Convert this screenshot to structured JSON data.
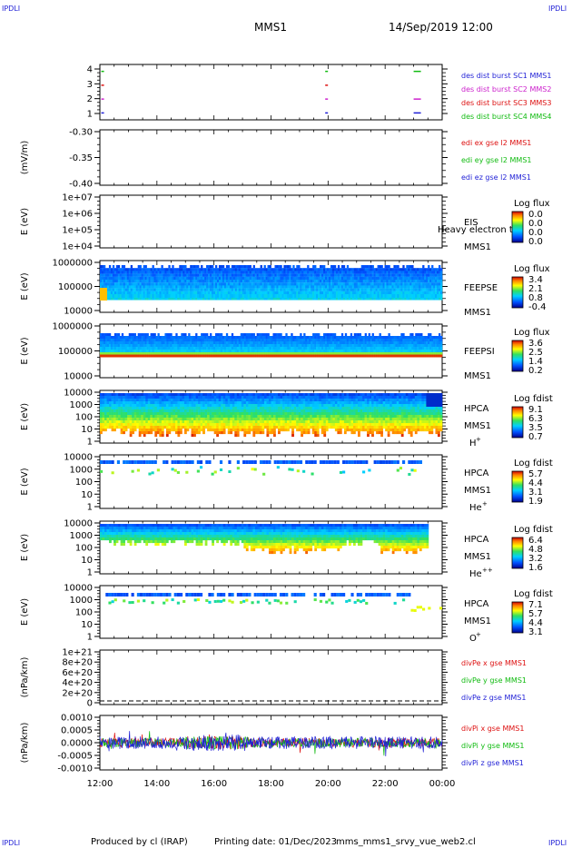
{
  "header": {
    "corner_left_top": "IPDLI",
    "corner_right_top": "IPDLI",
    "corner_left_bottom": "IPDLI",
    "corner_right_bottom": "IPDLI",
    "title": "MMS1",
    "datetime": "14/Sep/2019 12:00"
  },
  "footer": {
    "produced": "Produced by cl (IRAP)",
    "printing": "Printing date: 01/Dec/2023",
    "file": "mms_mms1_srvy_vue_web2.cl"
  },
  "colors": {
    "c_blue": "#1f1fd6",
    "c_magenta": "#cc22cc",
    "c_red": "#dd1111",
    "c_green": "#11bb11"
  },
  "chart_data": {
    "type": "heatmap",
    "x_axis": {
      "ticks": [
        "12:00",
        "14:00",
        "16:00",
        "18:00",
        "20:00",
        "22:00",
        "00:00"
      ],
      "range_hours": [
        12,
        24
      ]
    },
    "panels": [
      {
        "id": "burst",
        "type": "scatter",
        "ylabel": "",
        "yticks": [
          "4",
          "3",
          "2",
          "1"
        ],
        "ylim": [
          0.5,
          4.5
        ],
        "legend": [
          {
            "text": "des dist burst SC1 MMS1",
            "color": "#1f1fd6"
          },
          {
            "text": "des dist burst SC2 MMS2",
            "color": "#cc22cc"
          },
          {
            "text": "des dist burst SC3 MMS3",
            "color": "#dd1111"
          },
          {
            "text": "des dist burst SC4 MMS4",
            "color": "#11bb11"
          }
        ],
        "marks": [
          {
            "x": 12.05,
            "level": 4,
            "color": "#11bb11"
          },
          {
            "x": 12.05,
            "level": 3,
            "color": "#dd1111"
          },
          {
            "x": 12.05,
            "level": 2,
            "color": "#cc22cc"
          },
          {
            "x": 12.05,
            "level": 1,
            "color": "#1f1fd6"
          },
          {
            "x": 19.9,
            "level": 4,
            "color": "#11bb11"
          },
          {
            "x": 19.9,
            "level": 3,
            "color": "#dd1111"
          },
          {
            "x": 19.9,
            "level": 2,
            "color": "#cc22cc"
          },
          {
            "x": 19.9,
            "level": 1,
            "color": "#1f1fd6"
          },
          {
            "x": 23.0,
            "level": 4,
            "color": "#11bb11"
          },
          {
            "x": 23.0,
            "level": 2,
            "color": "#cc22cc"
          },
          {
            "x": 23.0,
            "level": 1,
            "color": "#1f1fd6"
          }
        ]
      },
      {
        "id": "edi",
        "type": "line",
        "ylabel": "(mV/m)",
        "yticks": [
          "-0.30",
          "-0.35",
          "-0.40"
        ],
        "ylim": [
          -0.42,
          -0.26
        ],
        "legend": [
          {
            "text": "edi ex gse l2 MMS1",
            "color": "#dd1111"
          },
          {
            "text": "edi ey gse l2 MMS1",
            "color": "#11bb11"
          },
          {
            "text": "edi ez gse l2 MMS1",
            "color": "#1f1fd6"
          }
        ]
      },
      {
        "id": "eis",
        "type": "heatmap",
        "ylabel": "E (eV)",
        "yticks": [
          "1e+07",
          "1e+06",
          "1e+05",
          "1e+04"
        ],
        "ylim": [
          10000,
          10000000
        ],
        "label": [
          "EIS",
          "MMS1"
        ],
        "overlay": "Heavy electron to",
        "cbar_title": "Log flux",
        "cbar_ticks": [
          "0.0",
          "0.0",
          "0.0",
          "0.0"
        ]
      },
      {
        "id": "feepse",
        "type": "heatmap",
        "ylabel": "E (eV)",
        "yticks": [
          "1000000",
          "100000",
          "10000"
        ],
        "ylim": [
          10000,
          1500000
        ],
        "label": [
          "FEEPSE",
          "MMS1"
        ],
        "cbar_title": "Log flux",
        "cbar_ticks": [
          "3.4",
          "2.1",
          "0.8",
          "-0.4"
        ]
      },
      {
        "id": "feepsi",
        "type": "heatmap",
        "ylabel": "E (eV)",
        "yticks": [
          "1000000",
          "100000",
          "10000"
        ],
        "ylim": [
          10000,
          1500000
        ],
        "label": [
          "FEEPSI",
          "MMS1"
        ],
        "cbar_title": "Log flux",
        "cbar_ticks": [
          "3.6",
          "2.5",
          "1.4",
          "0.2"
        ]
      },
      {
        "id": "hpca_h",
        "type": "heatmap",
        "ylabel": "E (eV)",
        "yticks": [
          "10000",
          "1000",
          "100",
          "10",
          "1"
        ],
        "ylim": [
          1,
          40000
        ],
        "label": [
          "HPCA",
          "MMS1"
        ],
        "species": "H",
        "species_sup": "+",
        "cbar_title": "Log fdist",
        "cbar_ticks": [
          "9.1",
          "6.3",
          "3.5",
          "0.7"
        ]
      },
      {
        "id": "hpca_he",
        "type": "heatmap",
        "ylabel": "E (eV)",
        "yticks": [
          "10000",
          "1000",
          "100",
          "10",
          "1"
        ],
        "ylim": [
          1,
          40000
        ],
        "label": [
          "HPCA",
          "MMS1"
        ],
        "species": "He",
        "species_sup": "+",
        "cbar_title": "Log fdist",
        "cbar_ticks": [
          "5.7",
          "4.4",
          "3.1",
          "1.9"
        ]
      },
      {
        "id": "hpca_hepp",
        "type": "heatmap",
        "ylabel": "E (eV)",
        "yticks": [
          "10000",
          "1000",
          "100",
          "10",
          "1"
        ],
        "ylim": [
          1,
          40000
        ],
        "label": [
          "HPCA",
          "MMS1"
        ],
        "species": "He",
        "species_sup": "++",
        "cbar_title": "Log fdist",
        "cbar_ticks": [
          "6.4",
          "4.8",
          "3.2",
          "1.6"
        ]
      },
      {
        "id": "hpca_o",
        "type": "heatmap",
        "ylabel": "E (eV)",
        "yticks": [
          "10000",
          "1000",
          "100",
          "10",
          "1"
        ],
        "ylim": [
          1,
          40000
        ],
        "label": [
          "HPCA",
          "MMS1"
        ],
        "species": "O",
        "species_sup": "+",
        "cbar_title": "Log fdist",
        "cbar_ticks": [
          "7.1",
          "5.7",
          "4.4",
          "3.1"
        ]
      },
      {
        "id": "divpe",
        "type": "line",
        "ylabel": "(nPa/km)",
        "yticks": [
          "1e+21",
          "8e+20",
          "6e+20",
          "4e+20",
          "2e+20",
          "0"
        ],
        "ylim": [
          0,
          1e+21
        ],
        "legend": [
          {
            "text": "divPe x gse MMS1",
            "color": "#dd1111"
          },
          {
            "text": "divPe y gse MMS1",
            "color": "#11bb11"
          },
          {
            "text": "divPe z gse MMS1",
            "color": "#1f1fd6"
          }
        ]
      },
      {
        "id": "divpi",
        "type": "line",
        "ylabel": "(nPa/km)",
        "yticks": [
          "0.0010",
          "0.0005",
          "0.0000",
          "-0.0005",
          "-0.0010"
        ],
        "ylim": [
          -0.0013,
          0.0013
        ],
        "legend": [
          {
            "text": "divPi x gse MMS1",
            "color": "#dd1111"
          },
          {
            "text": "divPi y gse MMS1",
            "color": "#11bb11"
          },
          {
            "text": "divPi z gse MMS1",
            "color": "#1f1fd6"
          }
        ]
      }
    ]
  }
}
